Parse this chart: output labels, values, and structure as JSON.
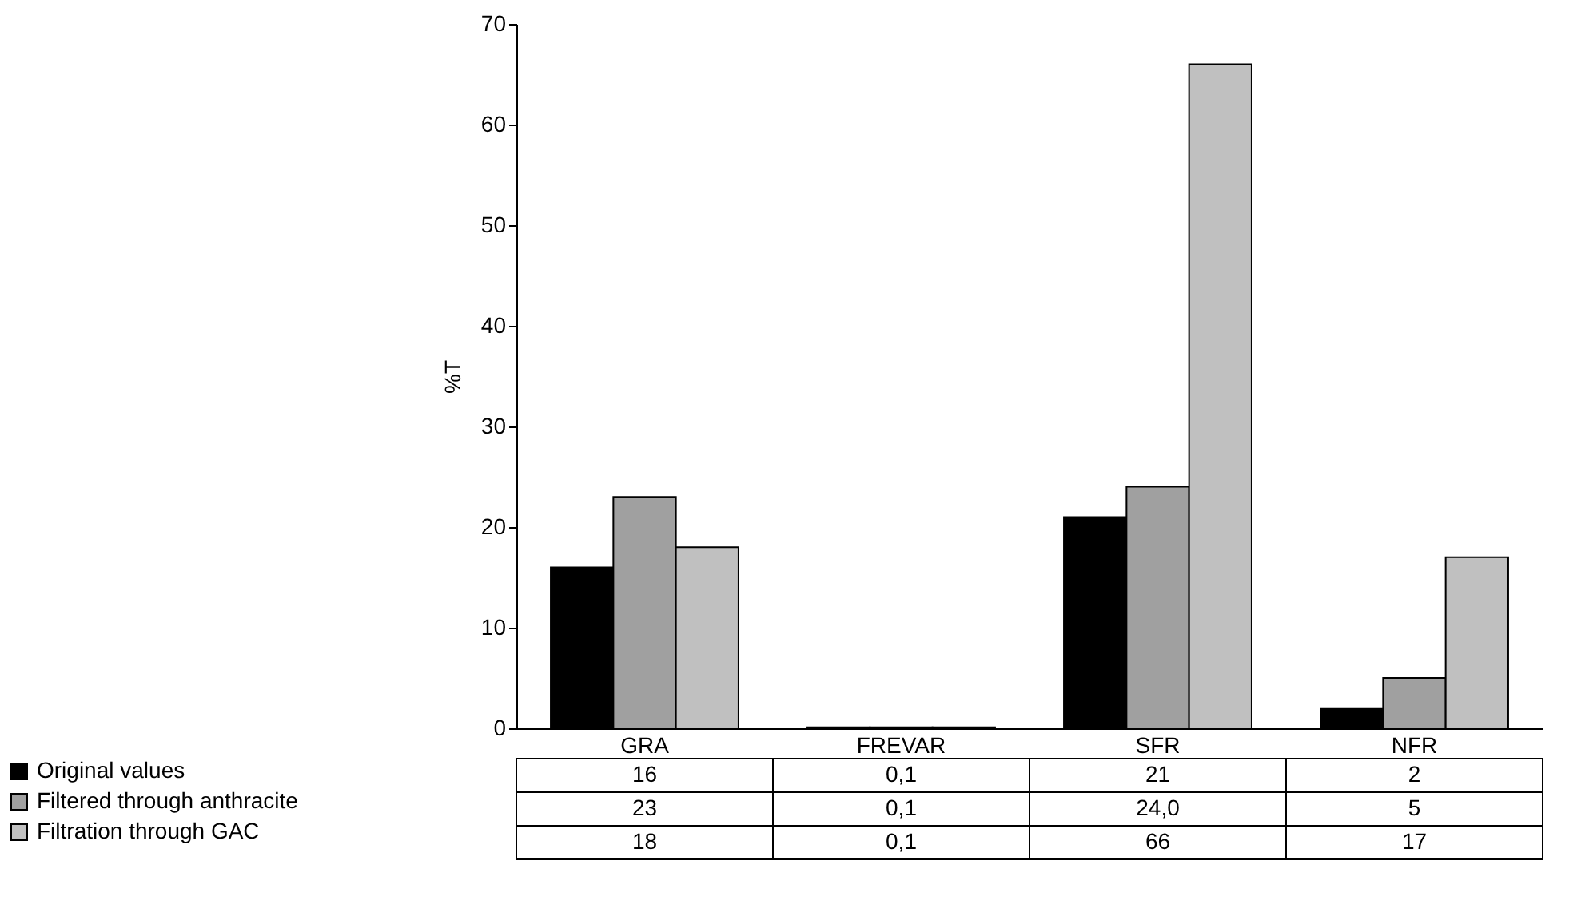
{
  "chart_data": {
    "type": "bar",
    "ylabel": "%T",
    "categories": [
      "GRA",
      "FREVAR",
      "SFR",
      "NFR"
    ],
    "series": [
      {
        "name": "Original values",
        "color": "#000000",
        "values": [
          16,
          0.1,
          21,
          2
        ],
        "value_labels": [
          "16",
          "0,1",
          "21",
          "2"
        ]
      },
      {
        "name": "Filtered through anthracite",
        "color": "#a0a0a0",
        "values": [
          23,
          0.1,
          24,
          5
        ],
        "value_labels": [
          "23",
          "0,1",
          "24,0",
          "5"
        ]
      },
      {
        "name": "Filtration through GAC",
        "color": "#c0c0c0",
        "values": [
          18,
          0.1,
          66,
          17
        ],
        "value_labels": [
          "18",
          "0,1",
          "66",
          "17"
        ]
      }
    ],
    "ylim": [
      0,
      70
    ],
    "yticks": [
      0,
      10,
      20,
      30,
      40,
      50,
      60,
      70
    ],
    "grid": false,
    "legend": "bottom left",
    "data_labels": true
  }
}
